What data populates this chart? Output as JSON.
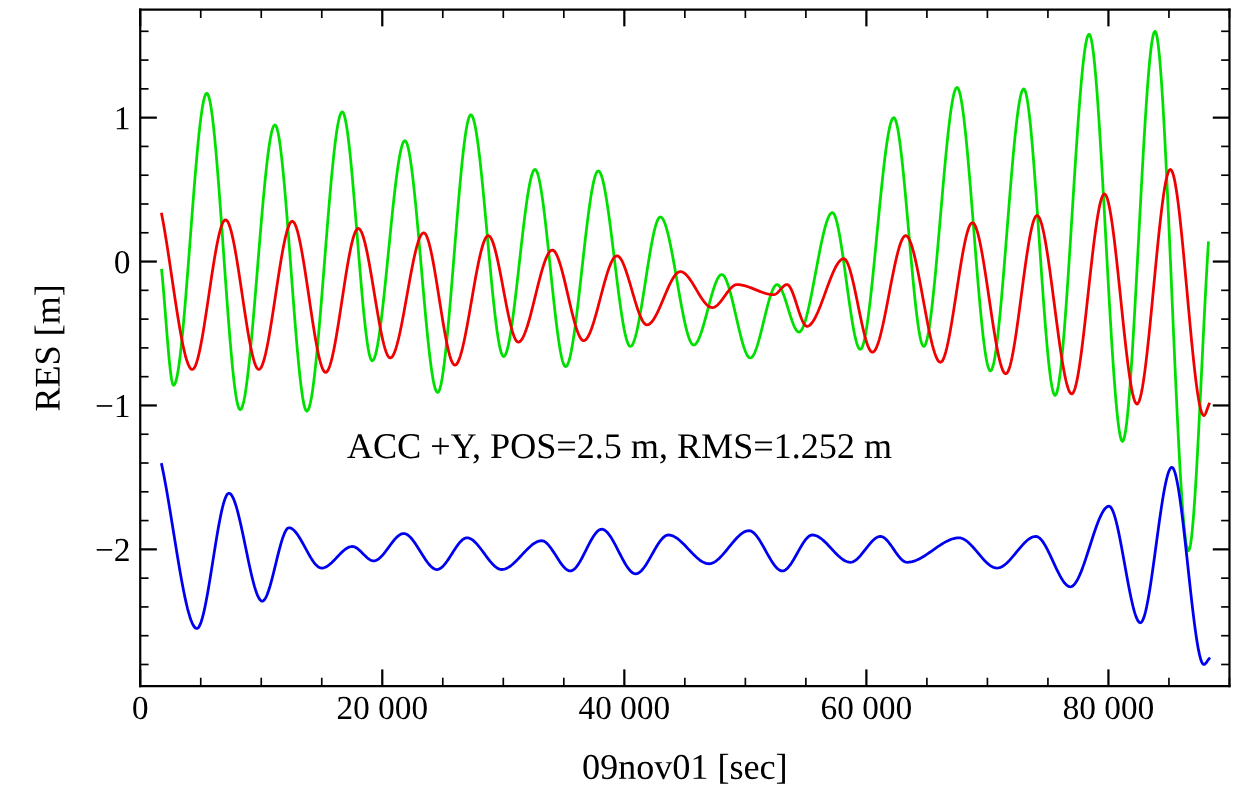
{
  "chart_data": {
    "type": "line",
    "xlabel": "09nov01 [sec]",
    "ylabel": "RES [m]",
    "annotations": [
      "ACC +Y, POS=2.5 m, RMS=1.252 m"
    ],
    "xlim": [
      0,
      90000
    ],
    "ylim": [
      -2.95,
      1.75
    ],
    "xticks": [
      0,
      {
        "value": 20000,
        "label": "20 000"
      },
      {
        "value": 40000,
        "label": "40 000"
      },
      {
        "value": 60000,
        "label": "60 000"
      },
      {
        "value": 80000,
        "label": "80 000"
      }
    ],
    "yticks": [
      {
        "value": -2,
        "label": "−2"
      },
      {
        "value": -1,
        "label": "−1"
      },
      0,
      1
    ],
    "marker": "none",
    "line_style": "solid",
    "series": [
      {
        "color": "#00e000",
        "x": [
          1770,
          2760,
          5500,
          8260,
          11130,
          13770,
          16690,
          19170,
          21870,
          24570,
          27320,
          30030,
          32620,
          35150,
          37850,
          40500,
          42980,
          45730,
          48050,
          50410,
          52620,
          54430,
          57190,
          59500,
          62260,
          64740,
          67490,
          70250,
          73000,
          75590,
          78400,
          81160,
          83850,
          86610,
          88260
        ],
        "values": [
          -0.06,
          -0.86,
          1.17,
          -1.03,
          0.95,
          -1.04,
          1.04,
          -0.69,
          0.84,
          -0.91,
          1.02,
          -0.66,
          0.64,
          -0.73,
          0.63,
          -0.59,
          0.31,
          -0.58,
          -0.09,
          -0.67,
          -0.16,
          -0.49,
          0.34,
          -0.61,
          1.0,
          -0.59,
          1.21,
          -0.76,
          1.2,
          -0.93,
          1.58,
          -1.25,
          1.6,
          -2.01,
          0.13
        ]
      },
      {
        "color": "#f00000",
        "x": [
          1770,
          4300,
          7050,
          9800,
          12560,
          15320,
          18020,
          20660,
          23420,
          26000,
          28760,
          31240,
          34050,
          36640,
          39390,
          41870,
          44630,
          47270,
          49310,
          52350,
          53440,
          55090,
          58130,
          60500,
          63250,
          66120,
          68760,
          71520,
          74100,
          76970,
          79670,
          82360,
          85120,
          87880,
          88320
        ],
        "values": [
          0.33,
          -0.75,
          0.29,
          -0.75,
          0.28,
          -0.77,
          0.23,
          -0.67,
          0.2,
          -0.72,
          0.18,
          -0.56,
          0.08,
          -0.55,
          0.04,
          -0.44,
          -0.07,
          -0.32,
          -0.16,
          -0.23,
          -0.16,
          -0.45,
          0.02,
          -0.63,
          0.18,
          -0.7,
          0.27,
          -0.78,
          0.32,
          -0.92,
          0.47,
          -0.99,
          0.64,
          -1.07,
          -0.99
        ]
      },
      {
        "color": "#0000f0",
        "x": [
          1770,
          4680,
          7330,
          10080,
          12290,
          14990,
          17520,
          19290,
          21770,
          24520,
          27000,
          29870,
          33170,
          35540,
          38130,
          40940,
          43640,
          46990,
          50300,
          53060,
          55540,
          58680,
          61160,
          63360,
          67650,
          70790,
          74000,
          76860,
          80050,
          82640,
          85240,
          87880,
          88320
        ],
        "values": [
          -1.41,
          -2.55,
          -1.61,
          -2.36,
          -1.85,
          -2.13,
          -1.98,
          -2.08,
          -1.89,
          -2.14,
          -1.92,
          -2.14,
          -1.94,
          -2.15,
          -1.86,
          -2.17,
          -1.9,
          -2.1,
          -1.87,
          -2.15,
          -1.9,
          -2.09,
          -1.91,
          -2.09,
          -1.92,
          -2.13,
          -1.91,
          -2.26,
          -1.7,
          -2.51,
          -1.43,
          -2.8,
          -2.76
        ]
      }
    ]
  }
}
